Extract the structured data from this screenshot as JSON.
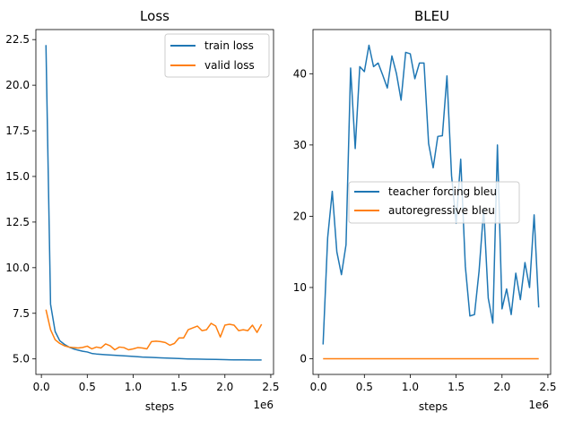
{
  "chart_data": [
    {
      "type": "line",
      "title": "Loss",
      "xlabel": "steps",
      "ylabel": "",
      "x_offset_text": "1e6",
      "xlim": [
        -0.06,
        2.53
      ],
      "ylim": [
        4.15,
        23.05
      ],
      "x_ticks": [
        0.0,
        0.5,
        1.0,
        1.5,
        2.0,
        2.5
      ],
      "x_tick_labels": [
        "0.0",
        "0.5",
        "1.0",
        "1.5",
        "2.0",
        "2.5"
      ],
      "y_ticks": [
        5.0,
        7.5,
        10.0,
        12.5,
        15.0,
        17.5,
        20.0,
        22.5
      ],
      "y_tick_labels": [
        "5.0",
        "7.5",
        "10.0",
        "12.5",
        "15.0",
        "17.5",
        "20.0",
        "22.5"
      ],
      "legend_position": "upper right",
      "series": [
        {
          "name": "train loss",
          "color": "#1f77b4",
          "x": [
            0.05,
            0.1,
            0.15,
            0.2,
            0.25,
            0.3,
            0.35,
            0.4,
            0.45,
            0.5,
            0.55,
            0.6,
            0.7,
            0.8,
            0.9,
            1.0,
            1.1,
            1.2,
            1.3,
            1.4,
            1.5,
            1.6,
            1.7,
            1.8,
            1.9,
            2.0,
            2.1,
            2.2,
            2.3,
            2.4
          ],
          "y": [
            22.2,
            8.0,
            6.5,
            6.0,
            5.8,
            5.65,
            5.55,
            5.48,
            5.42,
            5.38,
            5.3,
            5.27,
            5.23,
            5.2,
            5.17,
            5.14,
            5.1,
            5.08,
            5.06,
            5.04,
            5.02,
            5.0,
            4.99,
            4.98,
            4.97,
            4.96,
            4.95,
            4.95,
            4.94,
            4.94
          ]
        },
        {
          "name": "valid loss",
          "color": "#ff7f0e",
          "x": [
            0.05,
            0.1,
            0.15,
            0.2,
            0.25,
            0.3,
            0.35,
            0.4,
            0.45,
            0.5,
            0.55,
            0.6,
            0.65,
            0.7,
            0.75,
            0.8,
            0.85,
            0.9,
            0.95,
            1.0,
            1.05,
            1.1,
            1.15,
            1.2,
            1.25,
            1.3,
            1.35,
            1.4,
            1.45,
            1.5,
            1.55,
            1.6,
            1.65,
            1.7,
            1.75,
            1.8,
            1.85,
            1.9,
            1.95,
            2.0,
            2.05,
            2.1,
            2.15,
            2.2,
            2.25,
            2.3,
            2.35,
            2.4
          ],
          "y": [
            7.7,
            6.6,
            6.05,
            5.85,
            5.72,
            5.65,
            5.62,
            5.6,
            5.63,
            5.7,
            5.55,
            5.65,
            5.6,
            5.82,
            5.72,
            5.5,
            5.65,
            5.62,
            5.5,
            5.55,
            5.62,
            5.6,
            5.55,
            5.95,
            5.97,
            5.95,
            5.9,
            5.75,
            5.85,
            6.15,
            6.15,
            6.6,
            6.7,
            6.8,
            6.55,
            6.6,
            6.95,
            6.8,
            6.2,
            6.85,
            6.9,
            6.85,
            6.55,
            6.6,
            6.55,
            6.85,
            6.45,
            6.9
          ]
        }
      ]
    },
    {
      "type": "line",
      "title": "BLEU",
      "xlabel": "steps",
      "ylabel": "",
      "x_offset_text": "1e6",
      "xlim": [
        -0.06,
        2.53
      ],
      "ylim": [
        -2.2,
        46.2
      ],
      "x_ticks": [
        0.0,
        0.5,
        1.0,
        1.5,
        2.0,
        2.5
      ],
      "x_tick_labels": [
        "0.0",
        "0.5",
        "1.0",
        "1.5",
        "2.0",
        "2.5"
      ],
      "y_ticks": [
        0,
        10,
        20,
        30,
        40
      ],
      "y_tick_labels": [
        "0",
        "10",
        "20",
        "30",
        "40"
      ],
      "legend_position": "center right",
      "series": [
        {
          "name": "teacher forcing bleu",
          "color": "#1f77b4",
          "x": [
            0.05,
            0.1,
            0.15,
            0.2,
            0.25,
            0.3,
            0.35,
            0.4,
            0.45,
            0.5,
            0.55,
            0.6,
            0.65,
            0.7,
            0.75,
            0.8,
            0.85,
            0.9,
            0.95,
            1.0,
            1.05,
            1.1,
            1.15,
            1.2,
            1.25,
            1.3,
            1.35,
            1.4,
            1.45,
            1.5,
            1.55,
            1.6,
            1.65,
            1.7,
            1.75,
            1.8,
            1.85,
            1.9,
            1.95,
            2.0,
            2.05,
            2.1,
            2.15,
            2.2,
            2.25,
            2.3,
            2.35,
            2.4
          ],
          "y": [
            2.0,
            17.0,
            23.5,
            15.0,
            11.8,
            16.0,
            40.8,
            29.5,
            41.0,
            40.3,
            44.0,
            41.0,
            41.5,
            39.8,
            38.0,
            42.5,
            40.0,
            36.3,
            43.0,
            42.8,
            39.3,
            41.5,
            41.5,
            30.2,
            26.8,
            31.2,
            31.3,
            39.7,
            25.7,
            19.0,
            28.0,
            13.0,
            6.0,
            6.2,
            12.3,
            21.0,
            8.5,
            5.0,
            30.0,
            7.0,
            9.8,
            6.2,
            12.0,
            8.3,
            13.5,
            10.0,
            20.2,
            7.2
          ]
        },
        {
          "name": "autoregressive bleu",
          "color": "#ff7f0e",
          "x": [
            0.05,
            2.4
          ],
          "y": [
            0,
            0
          ]
        }
      ]
    }
  ]
}
